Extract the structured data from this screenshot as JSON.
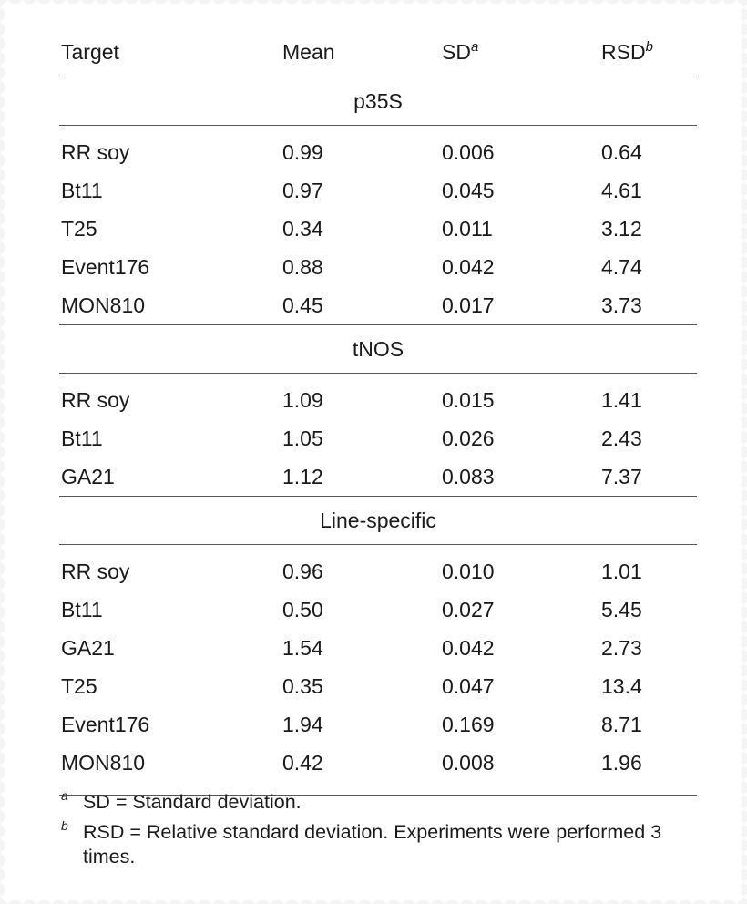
{
  "columns": {
    "target": "Target",
    "mean": "Mean",
    "sd": "SD",
    "sd_mark": "a",
    "rsd": "RSD",
    "rsd_mark": "b"
  },
  "sections": [
    {
      "title": "p35S",
      "rows": [
        {
          "target": "RR soy",
          "mean": "0.99",
          "sd": "0.006",
          "rsd": "0.64"
        },
        {
          "target": "Bt11",
          "mean": "0.97",
          "sd": "0.045",
          "rsd": "4.61"
        },
        {
          "target": "T25",
          "mean": "0.34",
          "sd": "0.011",
          "rsd": "3.12"
        },
        {
          "target": "Event176",
          "mean": "0.88",
          "sd": "0.042",
          "rsd": "4.74"
        },
        {
          "target": "MON810",
          "mean": "0.45",
          "sd": "0.017",
          "rsd": "3.73"
        }
      ]
    },
    {
      "title": "tNOS",
      "rows": [
        {
          "target": "RR soy",
          "mean": "1.09",
          "sd": "0.015",
          "rsd": "1.41"
        },
        {
          "target": "Bt11",
          "mean": "1.05",
          "sd": "0.026",
          "rsd": "2.43"
        },
        {
          "target": "GA21",
          "mean": "1.12",
          "sd": "0.083",
          "rsd": "7.37"
        }
      ]
    },
    {
      "title": "Line-specific",
      "rows": [
        {
          "target": "RR soy",
          "mean": "0.96",
          "sd": "0.010",
          "rsd": "1.01"
        },
        {
          "target": "Bt11",
          "mean": "0.50",
          "sd": "0.027",
          "rsd": "5.45"
        },
        {
          "target": "GA21",
          "mean": "1.54",
          "sd": "0.042",
          "rsd": "2.73"
        },
        {
          "target": "T25",
          "mean": "0.35",
          "sd": "0.047",
          "rsd": "13.4"
        },
        {
          "target": "Event176",
          "mean": "1.94",
          "sd": "0.169",
          "rsd": "8.71"
        },
        {
          "target": "MON810",
          "mean": "0.42",
          "sd": "0.008",
          "rsd": "1.96"
        }
      ]
    }
  ],
  "footnotes": [
    {
      "mark": "a",
      "text": "SD = Standard deviation."
    },
    {
      "mark": "b",
      "text": "RSD = Relative standard deviation. Experiments were performed 3 times."
    }
  ]
}
